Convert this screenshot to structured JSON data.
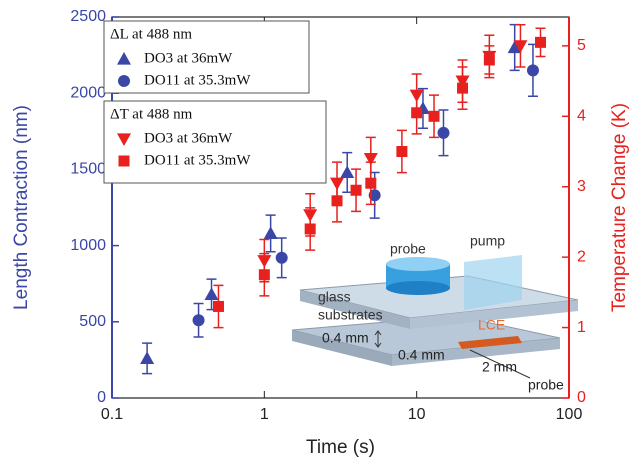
{
  "chart_data": {
    "type": "scatter",
    "x_label": "Time (s)",
    "y_label": "Length Contraction (nm)",
    "y2_label": "Temperature Change (K)",
    "xscale": "log",
    "xlim": [
      0.1,
      100
    ],
    "xticks": [
      0.1,
      1,
      10,
      100
    ],
    "ylim": [
      0,
      2500
    ],
    "yticks": [
      0,
      500,
      1000,
      1500,
      2000,
      2500
    ],
    "y2lim": [
      0,
      5.41
    ],
    "y2ticks": [
      0,
      1,
      2,
      3,
      4,
      5
    ],
    "y_color": "#3a47a6",
    "y2_color": "#e8211e",
    "legend_corner": "upper left",
    "legend_titles": [
      "ΔL at 488 nm",
      "ΔT at 488 nm"
    ],
    "series": [
      {
        "name": "DO3 at 36mW",
        "legend": 0,
        "color": "#3a47a6",
        "marker": "triangle-up",
        "axis": "y",
        "x": [
          0.17,
          0.45,
          1.1,
          3.5,
          11,
          44
        ],
        "values": [
          260,
          680,
          1080,
          1480,
          1900,
          2300
        ],
        "errors": [
          100,
          100,
          120,
          130,
          130,
          150
        ]
      },
      {
        "name": "DO11 at 35.3mW",
        "legend": 0,
        "color": "#3a47a6",
        "marker": "circle",
        "axis": "y",
        "x": [
          0.37,
          1.3,
          5.3,
          15,
          58
        ],
        "values": [
          510,
          920,
          1330,
          1740,
          2150
        ],
        "errors": [
          110,
          130,
          150,
          150,
          170
        ]
      },
      {
        "name": "DO3 at 36mW",
        "legend": 1,
        "color": "#e8211e",
        "marker": "triangle-down",
        "axis": "y2",
        "x": [
          1.0,
          2.0,
          3.0,
          5.0,
          10,
          20,
          30,
          48
        ],
        "values": [
          1.95,
          2.6,
          3.05,
          3.4,
          4.3,
          4.5,
          4.85,
          5.0
        ],
        "errors": [
          0.3,
          0.3,
          0.3,
          0.3,
          0.3,
          0.3,
          0.3,
          0.3
        ]
      },
      {
        "name": "DO11 at 35.3mW",
        "legend": 1,
        "color": "#e8211e",
        "marker": "square",
        "axis": "y2",
        "x": [
          0.5,
          1.0,
          2.0,
          3.0,
          4.0,
          5.0,
          8.0,
          10,
          13,
          20,
          30,
          65
        ],
        "values": [
          1.3,
          1.75,
          2.4,
          2.8,
          2.95,
          3.05,
          3.5,
          4.05,
          4.0,
          4.4,
          4.8,
          5.05
        ],
        "errors": [
          0.3,
          0.3,
          0.3,
          0.3,
          0.3,
          0.3,
          0.3,
          0.3,
          0.3,
          0.3,
          0.2,
          0.2
        ]
      }
    ]
  },
  "inset": {
    "probe_top": "probe",
    "pump": "pump",
    "glass": "glass",
    "substrates": "substrates",
    "gap": "0.4 mm",
    "lce": "LCE",
    "thickness": "0.4 mm",
    "length": "2 mm",
    "probe_bottom": "probe"
  }
}
